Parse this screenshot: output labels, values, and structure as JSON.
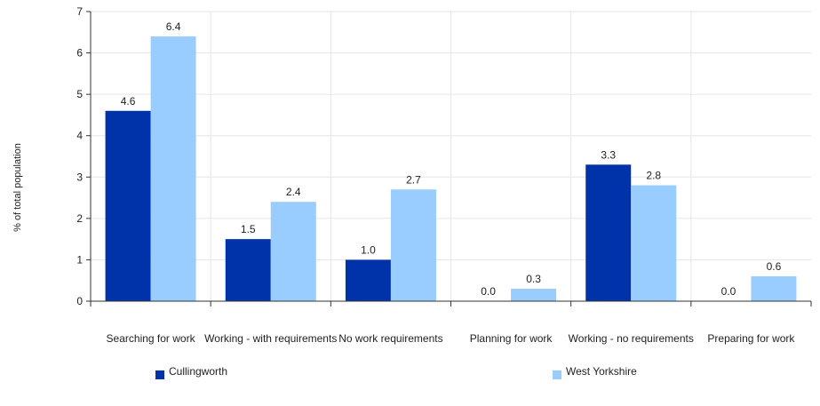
{
  "chart_data": {
    "type": "bar",
    "title": "",
    "xlabel": "",
    "ylabel": "% of total population",
    "ylim": [
      0,
      7
    ],
    "yticks": [
      0,
      1,
      2,
      3,
      4,
      5,
      6,
      7
    ],
    "grid": true,
    "legend_position": "bottom",
    "categories": [
      "Searching for work",
      "Working - with requirements",
      "No work requirements",
      "Planning for work",
      "Working - no requirements",
      "Preparing for work"
    ],
    "series": [
      {
        "name": "Cullingworth",
        "color": "#0033aa",
        "values": [
          4.6,
          1.5,
          1.0,
          0.0,
          3.3,
          0.0
        ],
        "labels": [
          "4.6",
          "1.5",
          "1.0",
          "0.0",
          "3.3",
          "0.0"
        ]
      },
      {
        "name": "West Yorkshire",
        "color": "#99ccff",
        "values": [
          6.4,
          2.4,
          2.7,
          0.3,
          2.8,
          0.6
        ],
        "labels": [
          "6.4",
          "2.4",
          "2.7",
          "0.3",
          "2.8",
          "0.6"
        ]
      }
    ]
  }
}
